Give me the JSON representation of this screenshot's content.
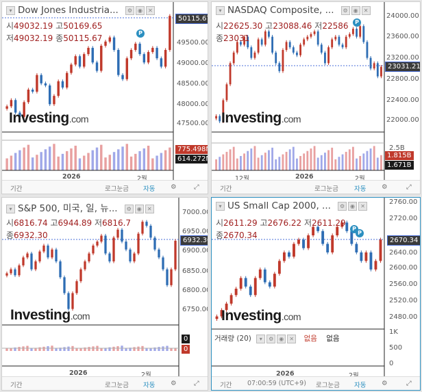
{
  "panes": [
    {
      "id": "dji",
      "title": "Dow Jones Industria...",
      "ohlc": {
        "o_label": "시",
        "o": "49032.19",
        "h_label": "고",
        "h": "50169.65",
        "l_label": "저",
        "l": "49032.19",
        "c_label": "종",
        "c": "50115.67"
      },
      "price_label": "50115.67",
      "y_ticks": [
        "50000.00",
        "49500.00",
        "49000.00",
        "48500.00",
        "48000.00",
        "47500.00"
      ],
      "x_ticks": [
        "2026",
        "2월"
      ],
      "volume_labels": [
        "775.498M",
        "614.272M"
      ],
      "toolbar": {
        "period": "기간",
        "log": "로그눈금",
        "auto": "자동"
      }
    },
    {
      "id": "nasdaq",
      "title": "NASDAQ Composite, ...",
      "ohlc": {
        "o_label": "시",
        "o": "22625.30",
        "h_label": "고",
        "h": "23088.46",
        "l_label": "저",
        "l": "22586",
        "c_label": "종",
        "c": "23031"
      },
      "price_label": "23031.21",
      "y_ticks": [
        "24000.00",
        "23600.00",
        "23200.00",
        "22800.00",
        "22400.00",
        "22000.00"
      ],
      "x_ticks": [
        "12월",
        "2026",
        "2월"
      ],
      "volume_labels": [
        "2.5B",
        "1.815B",
        "1.671B"
      ],
      "toolbar": {
        "period": "기간",
        "log": "로그눈금",
        "auto": "자동"
      }
    },
    {
      "id": "spx",
      "title": "S&P 500, 미국, 일, 뉴...",
      "ohlc": {
        "o_label": "시",
        "o": "6816.74",
        "h_label": "고",
        "h": "6944.89",
        "l_label": "저",
        "l": "6816.7",
        "c_label": "종",
        "c": "6932.30"
      },
      "price_label": "6932.30",
      "y_ticks": [
        "7000.00",
        "6950.00",
        "6900.00",
        "6850.00",
        "6800.00",
        "6750.00"
      ],
      "x_ticks": [
        "2026",
        "2월"
      ],
      "volume_labels": [
        "0",
        "0"
      ],
      "toolbar": {
        "period": "기간",
        "log": "로그눈금",
        "auto": "자동"
      }
    },
    {
      "id": "rut",
      "title": "US Small Cap 2000, ...",
      "ohlc": {
        "o_label": "시",
        "o": "2611.29",
        "h_label": "고",
        "h": "2676.22",
        "l_label": "저",
        "l": "2611.29",
        "c_label": "종",
        "c": "2670.34"
      },
      "price_label": "2670.34",
      "y_ticks": [
        "2760.00",
        "2720.00",
        "2680.00",
        "2640.00",
        "2600.00",
        "2560.00",
        "2520.00",
        "2480.00"
      ],
      "x_ticks": [
        "2026",
        "2월"
      ],
      "volume_header": {
        "label": "거래량 (20)",
        "v1": "없음",
        "v2": "없음"
      },
      "volume_ticks": [
        "1K",
        "500",
        "0"
      ],
      "toolbar": {
        "time": "07:00:59 (UTC+9)",
        "period": "기간",
        "log": "로그눈금",
        "auto": "자동"
      }
    }
  ],
  "brand": {
    "name": "Investing",
    "suffix": ".com"
  },
  "colors": {
    "up": "#c0392b",
    "down": "#2e6db4",
    "accent": "#2b8fc0",
    "dotline": "#4a6fd8"
  },
  "chart_data": [
    {
      "type": "candlestick",
      "name": "Dow Jones Industrial",
      "ylim": [
        47400,
        50250
      ],
      "closes": [
        47950,
        48100,
        47800,
        47700,
        48050,
        48350,
        48300,
        48700,
        48500,
        48450,
        48000,
        48200,
        48550,
        48400,
        48750,
        48950,
        49150,
        48900,
        49200,
        49350,
        49000,
        48800,
        49400,
        49500,
        49600,
        49300,
        48700,
        48600,
        49100,
        49300,
        49450,
        49200,
        49000,
        49250,
        49350,
        49100,
        48900,
        49300,
        50115
      ]
    },
    {
      "type": "candlestick",
      "name": "NASDAQ Composite",
      "ylim": [
        21850,
        24100
      ],
      "closes": [
        22100,
        22000,
        22400,
        22700,
        23100,
        23300,
        23500,
        23450,
        23600,
        23400,
        23200,
        23300,
        23550,
        23450,
        23700,
        23600,
        23300,
        23100,
        22950,
        23350,
        23500,
        23400,
        23300,
        23250,
        23450,
        23550,
        23600,
        23650,
        23700,
        23450,
        23300,
        23100,
        23400,
        23550,
        23600,
        23450,
        23400,
        23600,
        23650,
        23750,
        23600,
        23800,
        23500,
        23200,
        23000,
        23100,
        22850,
        23031
      ]
    },
    {
      "type": "candlestick",
      "name": "S&P 500",
      "ylim": [
        6730,
        7020
      ],
      "closes": [
        6850,
        6860,
        6845,
        6870,
        6890,
        6900,
        6860,
        6880,
        6905,
        6920,
        6890,
        6910,
        6880,
        6840,
        6800,
        6760,
        6800,
        6830,
        6860,
        6880,
        6900,
        6920,
        6930,
        6945,
        6900,
        6880,
        6940,
        6960,
        6930,
        6910,
        6880,
        6900,
        6950,
        6980,
        6970,
        6940,
        6910,
        6890,
        6860,
        6820,
        6860,
        6932
      ]
    },
    {
      "type": "candlestick",
      "name": "US Small Cap 2000",
      "ylim": [
        2470,
        2765
      ],
      "closes": [
        2490,
        2505,
        2520,
        2540,
        2555,
        2580,
        2560,
        2540,
        2580,
        2600,
        2570,
        2560,
        2590,
        2620,
        2640,
        2630,
        2660,
        2670,
        2650,
        2680,
        2700,
        2690,
        2660,
        2640,
        2680,
        2700,
        2710,
        2690,
        2660,
        2640,
        2620,
        2640,
        2600,
        2620,
        2670
      ]
    }
  ]
}
